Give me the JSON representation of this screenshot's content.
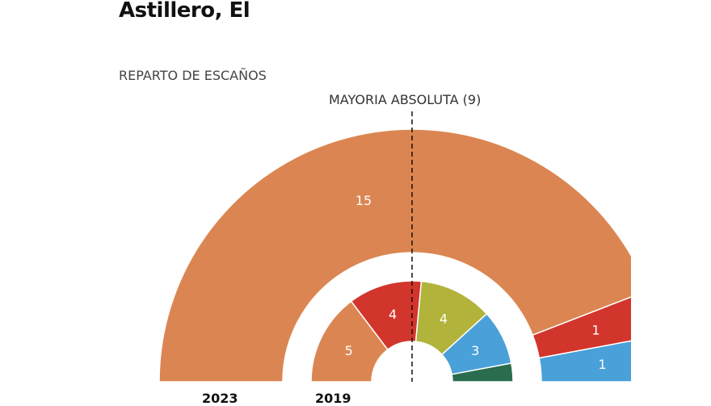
{
  "title": "Astillero, El",
  "subtitle": "REPARTO DE ESCAÑOS",
  "chart_data": {
    "type": "pie",
    "subtype": "parliament-semicircle",
    "majority_label": "MAYORIA ABSOLUTA (9)",
    "rings": [
      {
        "name": "2023",
        "segments": [
          {
            "value": 15,
            "color": "#db8652"
          },
          {
            "value": 1,
            "color": "#d2352c"
          },
          {
            "value": 1,
            "color": "#4aa0d8"
          }
        ]
      },
      {
        "name": "2019",
        "segments": [
          {
            "value": 5,
            "color": "#db8652"
          },
          {
            "value": 4,
            "color": "#d2352c"
          },
          {
            "value": 4,
            "color": "#b2b33a"
          },
          {
            "value": 3,
            "color": "#4aa0d8"
          },
          {
            "value": 1,
            "color": "#2a6d4e"
          }
        ]
      }
    ]
  }
}
